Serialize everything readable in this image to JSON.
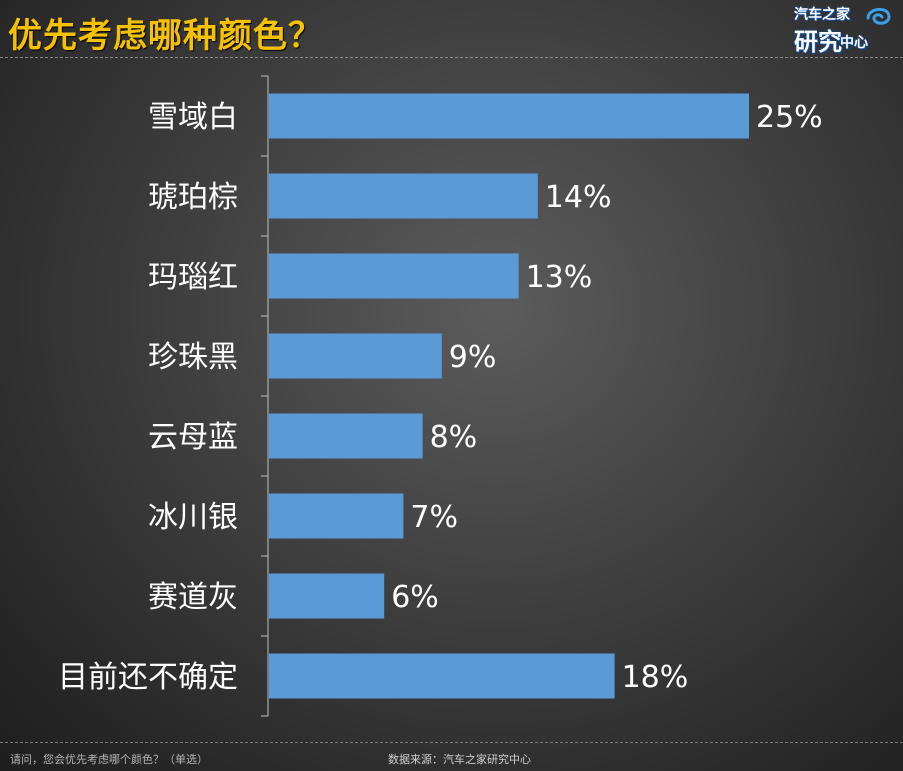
{
  "header": {
    "title": "优先考虑哪种颜色？"
  },
  "logo": {
    "line1": "汽车之家",
    "line2": "研究",
    "line3": "中心"
  },
  "footer": {
    "question": "请问，您会优先考虑哪个颜色？（单选）",
    "source": "数据来源：汽车之家研究中心"
  },
  "colors": {
    "title": "#f5c100",
    "bar": "#5b9bd5",
    "text": "#ffffff",
    "axis": "#bfbfbf"
  },
  "chart_data": {
    "type": "bar",
    "orientation": "horizontal",
    "categories": [
      "雪域白",
      "琥珀棕",
      "玛瑙红",
      "珍珠黑",
      "云母蓝",
      "冰川银",
      "赛道灰",
      "目前还不确定"
    ],
    "values": [
      25,
      14,
      13,
      9,
      8,
      7,
      6,
      18
    ],
    "value_labels": [
      "25%",
      "14%",
      "13%",
      "9%",
      "8%",
      "7%",
      "6%",
      "18%"
    ],
    "unit": "%",
    "xlim": [
      0,
      25
    ],
    "grid": false,
    "legend": "none"
  }
}
